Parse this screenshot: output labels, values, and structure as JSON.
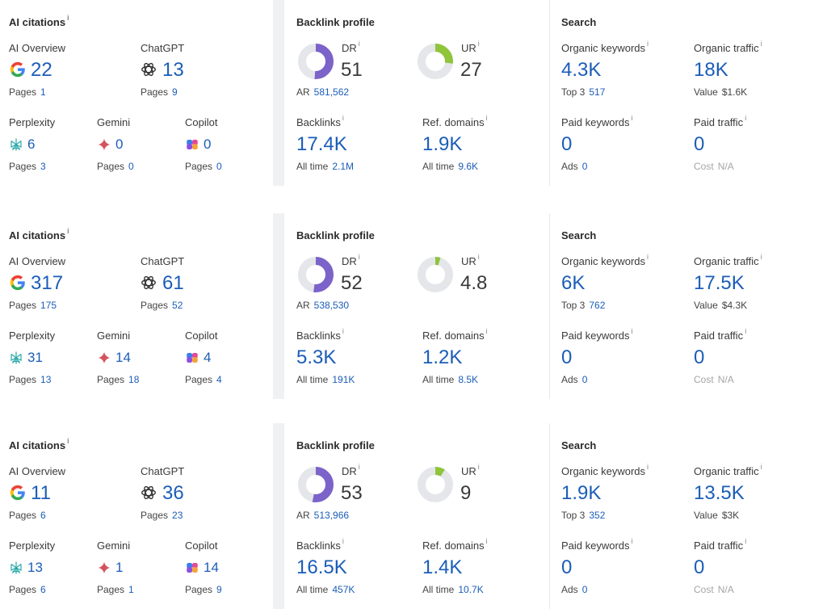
{
  "colors": {
    "accent": "#1b5db8",
    "dr": "#7b63c9",
    "ur": "#8fc43b",
    "track": "#e4e6ea"
  },
  "labels": {
    "ai_title": "AI citations",
    "ai_overview": "AI Overview",
    "chatgpt": "ChatGPT",
    "perplexity": "Perplexity",
    "gemini": "Gemini",
    "copilot": "Copilot",
    "pages": "Pages",
    "backlink_title": "Backlink profile",
    "dr": "DR",
    "ur": "UR",
    "ar": "AR",
    "backlinks": "Backlinks",
    "ref_domains": "Ref. domains",
    "all_time": "All time",
    "search_title": "Search",
    "organic_keywords": "Organic keywords",
    "organic_traffic": "Organic traffic",
    "top3": "Top 3",
    "value": "Value",
    "paid_keywords": "Paid keywords",
    "paid_traffic": "Paid traffic",
    "ads": "Ads",
    "cost": "Cost",
    "info_glyph": "i"
  },
  "rows": [
    {
      "ai": {
        "overview": "22",
        "overview_pages": "1",
        "chatgpt": "13",
        "chatgpt_pages": "9",
        "perplexity": "6",
        "perplexity_pages": "3",
        "gemini": "0",
        "gemini_pages": "0",
        "copilot": "0",
        "copilot_pages": "0"
      },
      "backlink": {
        "dr": "51",
        "dr_fraction": 0.51,
        "ar": "581,562",
        "ur": "27",
        "ur_fraction": 0.27,
        "backlinks": "17.4K",
        "backlinks_all": "2.1M",
        "refdomains": "1.9K",
        "refdomains_all": "9.6K"
      },
      "search": {
        "organic_keywords": "4.3K",
        "top3": "517",
        "organic_traffic": "18K",
        "value": "$1.6K",
        "paid_keywords": "0",
        "ads": "0",
        "paid_traffic": "0",
        "cost": "N/A"
      }
    },
    {
      "ai": {
        "overview": "317",
        "overview_pages": "175",
        "chatgpt": "61",
        "chatgpt_pages": "52",
        "perplexity": "31",
        "perplexity_pages": "13",
        "gemini": "14",
        "gemini_pages": "18",
        "copilot": "4",
        "copilot_pages": "4"
      },
      "backlink": {
        "dr": "52",
        "dr_fraction": 0.52,
        "ar": "538,530",
        "ur": "4.8",
        "ur_fraction": 0.048,
        "backlinks": "5.3K",
        "backlinks_all": "191K",
        "refdomains": "1.2K",
        "refdomains_all": "8.5K"
      },
      "search": {
        "organic_keywords": "6K",
        "top3": "762",
        "organic_traffic": "17.5K",
        "value": "$4.3K",
        "paid_keywords": "0",
        "ads": "0",
        "paid_traffic": "0",
        "cost": "N/A"
      }
    },
    {
      "ai": {
        "overview": "11",
        "overview_pages": "6",
        "chatgpt": "36",
        "chatgpt_pages": "23",
        "perplexity": "13",
        "perplexity_pages": "6",
        "gemini": "1",
        "gemini_pages": "1",
        "copilot": "14",
        "copilot_pages": "9"
      },
      "backlink": {
        "dr": "53",
        "dr_fraction": 0.53,
        "ar": "513,966",
        "ur": "9",
        "ur_fraction": 0.09,
        "backlinks": "16.5K",
        "backlinks_all": "457K",
        "refdomains": "1.4K",
        "refdomains_all": "10.7K"
      },
      "search": {
        "organic_keywords": "1.9K",
        "top3": "352",
        "organic_traffic": "13.5K",
        "value": "$3K",
        "paid_keywords": "0",
        "ads": "0",
        "paid_traffic": "0",
        "cost": "N/A"
      }
    }
  ]
}
